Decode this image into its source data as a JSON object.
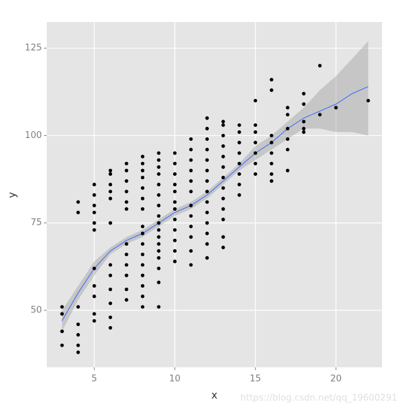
{
  "chart_data": {
    "type": "scatter",
    "x_label": "x",
    "y_label": "y",
    "x": [
      3,
      3,
      3,
      3,
      3,
      4,
      4,
      4,
      4,
      4,
      4,
      4,
      5,
      5,
      5,
      5,
      5,
      5,
      5,
      5,
      5,
      5,
      5,
      6,
      6,
      6,
      6,
      6,
      6,
      6,
      6,
      6,
      6,
      6,
      6,
      7,
      7,
      7,
      7,
      7,
      7,
      7,
      7,
      7,
      7,
      7,
      7,
      8,
      8,
      8,
      8,
      8,
      8,
      8,
      8,
      8,
      8,
      8,
      8,
      8,
      8,
      8,
      8,
      9,
      9,
      9,
      9,
      9,
      9,
      9,
      9,
      9,
      9,
      9,
      9,
      9,
      9,
      9,
      9,
      9,
      10,
      10,
      10,
      10,
      10,
      10,
      10,
      10,
      10,
      10,
      10,
      10,
      11,
      11,
      11,
      11,
      11,
      11,
      11,
      11,
      11,
      11,
      11,
      11,
      12,
      12,
      12,
      12,
      12,
      12,
      12,
      12,
      12,
      12,
      12,
      12,
      12,
      12,
      13,
      13,
      13,
      13,
      13,
      13,
      13,
      13,
      13,
      13,
      13,
      13,
      13,
      14,
      14,
      14,
      14,
      14,
      14,
      14,
      14,
      15,
      15,
      15,
      15,
      15,
      15,
      15,
      16,
      16,
      16,
      16,
      16,
      16,
      16,
      16,
      17,
      17,
      17,
      17,
      17,
      17,
      18,
      18,
      18,
      18,
      18,
      19,
      19,
      20,
      22
    ],
    "y": [
      40,
      44,
      44,
      49,
      51,
      38,
      40,
      43,
      46,
      51,
      78,
      81,
      47,
      49,
      54,
      57,
      62,
      73,
      75,
      78,
      80,
      83,
      86,
      45,
      48,
      52,
      56,
      60,
      63,
      75,
      82,
      84,
      86,
      89,
      90,
      53,
      56,
      60,
      63,
      66,
      69,
      79,
      81,
      84,
      87,
      90,
      92,
      51,
      54,
      57,
      60,
      63,
      66,
      69,
      72,
      74,
      79,
      82,
      85,
      88,
      90,
      92,
      94,
      51,
      58,
      62,
      65,
      67,
      69,
      71,
      73,
      75,
      77,
      80,
      83,
      86,
      89,
      91,
      93,
      95,
      64,
      67,
      70,
      73,
      76,
      79,
      81,
      84,
      86,
      89,
      92,
      95,
      63,
      67,
      71,
      74,
      77,
      80,
      84,
      87,
      90,
      93,
      96,
      99,
      65,
      69,
      72,
      75,
      78,
      81,
      84,
      87,
      90,
      93,
      96,
      99,
      102,
      105,
      68,
      71,
      76,
      79,
      82,
      85,
      88,
      91,
      94,
      97,
      100,
      103,
      104,
      83,
      86,
      89,
      92,
      95,
      98,
      101,
      103,
      89,
      92,
      95,
      98,
      101,
      103,
      110,
      87,
      89,
      92,
      95,
      98,
      100,
      113,
      116,
      90,
      96,
      99,
      102,
      106,
      108,
      101,
      102,
      104,
      109,
      112,
      106,
      120,
      108,
      110
    ],
    "color": "#000000",
    "smooth": {
      "x": [
        3,
        4,
        5,
        6,
        7,
        8,
        9,
        10,
        11,
        12,
        13,
        14,
        15,
        16,
        17,
        18,
        19,
        20,
        21,
        22
      ],
      "y": [
        47,
        55,
        62,
        67,
        70,
        72,
        75,
        78,
        80,
        83,
        87,
        91,
        95,
        98,
        102,
        105,
        107,
        109,
        112,
        114
      ],
      "lower": [
        44,
        53,
        60,
        66,
        69,
        71,
        74,
        77,
        79,
        82,
        86,
        90,
        93,
        96,
        99,
        102,
        102,
        101,
        101,
        100
      ],
      "upper": [
        50,
        57,
        64,
        68,
        71,
        73,
        76,
        79,
        81,
        84,
        88,
        92,
        97,
        100,
        104,
        108,
        113,
        117,
        122,
        127
      ],
      "color": "#3366ff",
      "fill": "#999999"
    },
    "xlim": [
      2.05,
      22.86
    ],
    "ylim": [
      33.7,
      132.5
    ],
    "xticks": [
      5,
      10,
      15,
      20
    ],
    "yticks": [
      50,
      75,
      100,
      125
    ],
    "grid": true,
    "watermark": "https://blog.csdn.net/qq_19600291"
  }
}
